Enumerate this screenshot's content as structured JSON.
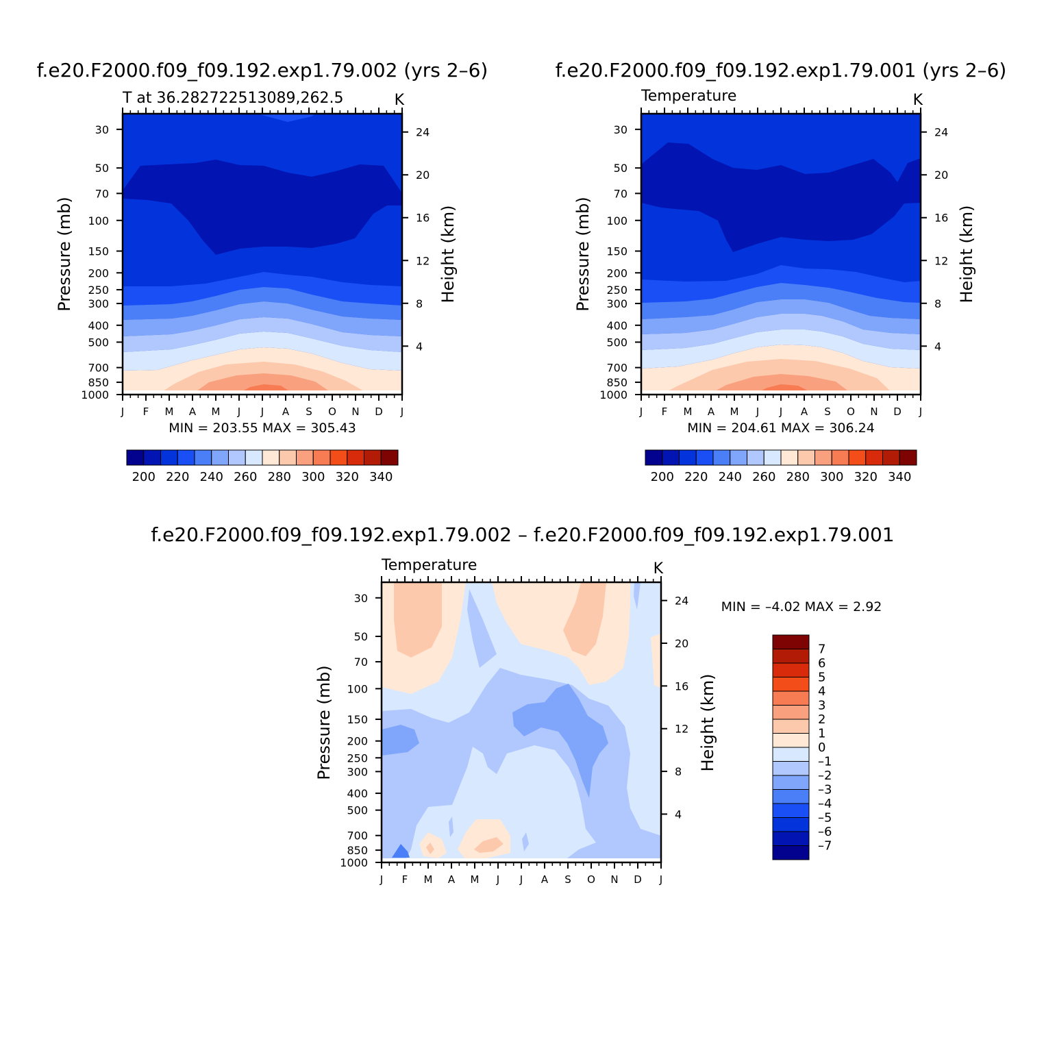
{
  "panels": [
    {
      "title": "f.e20.F2000.f09_f09.192.exp1.79.002 (yrs 2–6)",
      "subtitle_left": "T at 36.282722513089,262.5",
      "units": "K",
      "minmax_text": "MIN = 203.55 MAX = 305.43",
      "ylabel_left": "Pressure (mb)",
      "ylabel_right": "Height (km)"
    },
    {
      "title": "f.e20.F2000.f09_f09.192.exp1.79.001 (yrs 2–6)",
      "subtitle_left": "Temperature",
      "units": "K",
      "minmax_text": "MIN = 204.61 MAX = 306.24",
      "ylabel_left": "Pressure (mb)",
      "ylabel_right": "Height (km)"
    },
    {
      "title": "f.e20.F2000.f09_f09.192.exp1.79.002 – f.e20.F2000.f09_f09.192.exp1.79.001",
      "subtitle_left": "Temperature",
      "units": "K",
      "minmax_text": "MIN = –4.02 MAX = 2.92",
      "ylabel_left": "Pressure (mb)",
      "ylabel_right": "Height (km)"
    }
  ],
  "chart_data": [
    {
      "type": "contour",
      "title": "f.e20.F2000.f09_f09.192.exp1.79.002 (yrs 2–6)",
      "variable": "T at 36.282722513089,262.5",
      "units": "K",
      "x": [
        "J",
        "F",
        "M",
        "A",
        "M",
        "J",
        "J",
        "A",
        "S",
        "O",
        "N",
        "D",
        "J"
      ],
      "pressure_levels": [
        1000,
        850,
        700,
        500,
        400,
        300,
        250,
        200,
        150,
        100,
        70,
        50,
        30
      ],
      "pressure_ticks": [
        "30",
        "50",
        "70",
        "100",
        "150",
        "200",
        "250",
        "300",
        "400",
        "500",
        "700",
        "850",
        "1000"
      ],
      "height_ticks_km": [
        "4",
        "8",
        "12",
        "16",
        "20",
        "24"
      ],
      "min": 203.55,
      "max": 305.43,
      "contour_levels": [
        195,
        200,
        205,
        210,
        215,
        220,
        225,
        230,
        235,
        240,
        245,
        250,
        255,
        260,
        265,
        270,
        275,
        280,
        285,
        290,
        295,
        300,
        305,
        310,
        315,
        320,
        325,
        330,
        335,
        340,
        345
      ],
      "colorbar_labels": [
        "200",
        "220",
        "240",
        "260",
        "280",
        "300",
        "320",
        "340"
      ],
      "colorbar_colors": [
        "#03028e",
        "#0214b2",
        "#0233db",
        "#1a4ff5",
        "#4a7ff8",
        "#7fa6fb",
        "#b0c8fd",
        "#d8e8fe",
        "#ffe8d6",
        "#fdc9ad",
        "#f9a17f",
        "#f77b53",
        "#f34d19",
        "#d72b0b",
        "#b21c07",
        "#7e0404"
      ]
    },
    {
      "type": "contour",
      "title": "f.e20.F2000.f09_f09.192.exp1.79.001 (yrs 2–6)",
      "variable": "Temperature",
      "units": "K",
      "x": [
        "J",
        "F",
        "M",
        "A",
        "M",
        "J",
        "J",
        "A",
        "S",
        "O",
        "N",
        "D",
        "J"
      ],
      "pressure_levels": [
        1000,
        850,
        700,
        500,
        400,
        300,
        250,
        200,
        150,
        100,
        70,
        50,
        30
      ],
      "pressure_ticks": [
        "30",
        "50",
        "70",
        "100",
        "150",
        "200",
        "250",
        "300",
        "400",
        "500",
        "700",
        "850",
        "1000"
      ],
      "height_ticks_km": [
        "4",
        "8",
        "12",
        "16",
        "20",
        "24"
      ],
      "min": 204.61,
      "max": 306.24,
      "colorbar_labels": [
        "200",
        "220",
        "240",
        "260",
        "280",
        "300",
        "320",
        "340"
      ],
      "colorbar_colors": [
        "#03028e",
        "#0214b2",
        "#0233db",
        "#1a4ff5",
        "#4a7ff8",
        "#7fa6fb",
        "#b0c8fd",
        "#d8e8fe",
        "#ffe8d6",
        "#fdc9ad",
        "#f9a17f",
        "#f77b53",
        "#f34d19",
        "#d72b0b",
        "#b21c07",
        "#7e0404"
      ]
    },
    {
      "type": "contour",
      "title": "f.e20.F2000.f09_f09.192.exp1.79.002 – f.e20.F2000.f09_f09.192.exp1.79.001",
      "variable": "Temperature",
      "units": "K",
      "x": [
        "J",
        "F",
        "M",
        "A",
        "M",
        "J",
        "J",
        "A",
        "S",
        "O",
        "N",
        "D",
        "J"
      ],
      "pressure_ticks": [
        "30",
        "50",
        "70",
        "100",
        "150",
        "200",
        "250",
        "300",
        "400",
        "500",
        "700",
        "850",
        "1000"
      ],
      "height_ticks_km": [
        "4",
        "8",
        "12",
        "16",
        "20",
        "24"
      ],
      "min": -4.02,
      "max": 2.92,
      "colorbar_labels": [
        "7",
        "6",
        "5",
        "4",
        "3",
        "2",
        "1",
        "0",
        "–1",
        "–2",
        "–3",
        "–4",
        "–5",
        "–6",
        "–7"
      ],
      "colorbar_colors": [
        "#7e0404",
        "#b21c07",
        "#d72b0b",
        "#f34d19",
        "#f77b53",
        "#f9a17f",
        "#fdc9ad",
        "#ffe8d6",
        "#d8e8fe",
        "#b0c8fd",
        "#7fa6fb",
        "#4a7ff8",
        "#1a4ff5",
        "#0233db",
        "#0214b2",
        "#03028e"
      ]
    }
  ]
}
